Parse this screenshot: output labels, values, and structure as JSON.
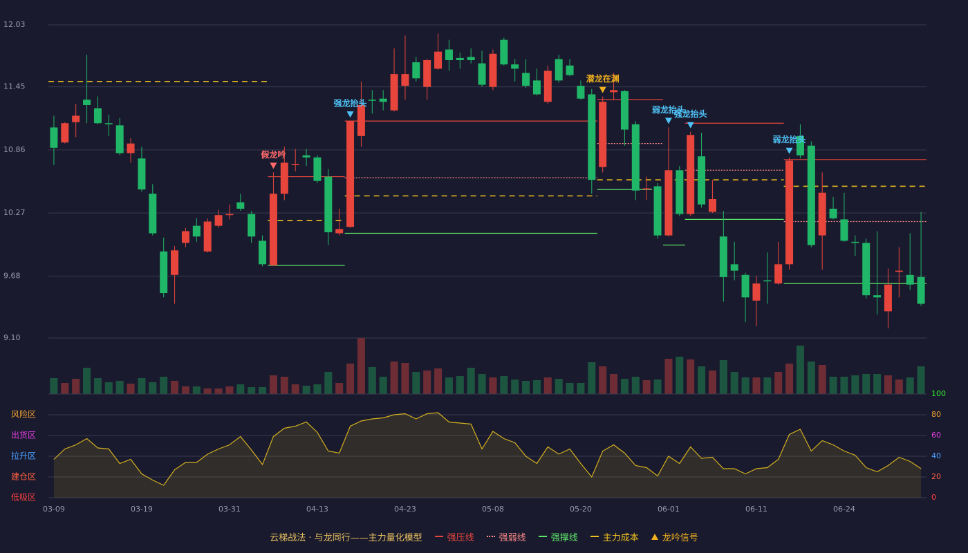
{
  "chart_data": [
    {
      "type": "candlestick",
      "legend_title": "云梯战法 · 与龙同行——主力量化模型",
      "up_color": "#e8463c",
      "down_color": "#20b868",
      "ylim": [
        9.1,
        12.03
      ],
      "yticks": [
        {
          "value": 9.1,
          "label": "9.10"
        },
        9.68,
        10.27,
        10.86,
        11.45,
        12.03
      ],
      "grid": true,
      "open": [
        11.07,
        10.93,
        11.12,
        11.33,
        11.25,
        11.11,
        11.09,
        10.83,
        10.78,
        10.45,
        9.91,
        9.69,
        9.99,
        10.15,
        9.91,
        10.15,
        10.25,
        10.37,
        10.26,
        10.01,
        9.78,
        10.45,
        10.72,
        10.81,
        10.79,
        10.61,
        10.08,
        10.14,
        10.99,
        11.33,
        11.34,
        11.23,
        11.46,
        11.68,
        11.45,
        11.62,
        11.8,
        11.72,
        11.73,
        11.67,
        11.45,
        11.89,
        11.66,
        11.58,
        11.51,
        11.31,
        11.71,
        11.65,
        11.46,
        11.38,
        10.7,
        11.4,
        11.41,
        11.1,
        10.49,
        10.52,
        10.06,
        10.67,
        10.26,
        10.8,
        10.28,
        10.05,
        9.79,
        9.69,
        9.45,
        9.64,
        9.61,
        9.79,
        10.99,
        10.9,
        10.06,
        10.31,
        10.21,
        10.0,
        9.99,
        9.5,
        9.35,
        9.72,
        9.69,
        9.67
      ],
      "high": [
        11.18,
        11.12,
        11.29,
        11.75,
        11.36,
        11.19,
        11.16,
        10.97,
        10.89,
        10.54,
        10.04,
        9.96,
        10.13,
        10.22,
        10.22,
        10.3,
        10.35,
        10.45,
        10.29,
        10.06,
        10.65,
        10.89,
        10.87,
        10.87,
        10.81,
        10.68,
        10.31,
        11.13,
        11.5,
        11.42,
        11.42,
        11.81,
        11.93,
        11.73,
        11.71,
        11.95,
        11.89,
        11.77,
        11.81,
        11.79,
        11.8,
        11.91,
        11.71,
        11.71,
        11.62,
        11.65,
        11.75,
        11.71,
        11.51,
        11.43,
        11.36,
        11.58,
        11.42,
        11.13,
        10.61,
        10.55,
        11.07,
        10.71,
        11.03,
        11.02,
        10.58,
        10.29,
        10.0,
        9.71,
        9.68,
        9.9,
        10.0,
        10.79,
        11.1,
        10.94,
        10.65,
        10.42,
        10.46,
        10.06,
        10.03,
        10.1,
        9.75,
        9.95,
        10.08,
        10.28
      ],
      "low": [
        10.72,
        10.92,
        10.98,
        11.11,
        11.1,
        10.99,
        10.81,
        10.74,
        10.47,
        10.06,
        9.48,
        9.42,
        9.95,
        10.0,
        9.9,
        10.13,
        10.21,
        10.29,
        9.99,
        9.77,
        9.78,
        10.39,
        10.66,
        10.71,
        10.55,
        9.97,
        10.06,
        10.13,
        10.89,
        11.2,
        11.23,
        11.22,
        11.33,
        11.5,
        11.33,
        11.61,
        11.6,
        11.62,
        11.67,
        11.45,
        11.42,
        11.65,
        11.5,
        11.44,
        11.37,
        11.29,
        11.49,
        11.55,
        11.33,
        10.45,
        10.65,
        11.33,
        10.9,
        10.39,
        10.39,
        10.03,
        10.05,
        10.24,
        10.24,
        10.32,
        10.27,
        9.44,
        9.64,
        9.25,
        9.21,
        9.42,
        9.6,
        9.74,
        10.78,
        9.95,
        9.74,
        10.21,
        10.0,
        9.87,
        9.47,
        9.32,
        9.19,
        9.48,
        9.55,
        9.4
      ],
      "close": [
        10.88,
        11.11,
        11.18,
        11.28,
        11.11,
        11.1,
        10.83,
        10.92,
        10.49,
        10.08,
        9.52,
        9.92,
        10.1,
        10.05,
        10.19,
        10.25,
        10.26,
        10.31,
        10.05,
        9.79,
        10.45,
        10.74,
        10.73,
        10.79,
        10.57,
        10.09,
        10.12,
        11.13,
        11.28,
        11.32,
        11.31,
        11.57,
        11.57,
        11.53,
        11.7,
        11.78,
        11.7,
        11.7,
        11.7,
        11.47,
        11.76,
        11.66,
        11.62,
        11.46,
        11.38,
        11.6,
        11.51,
        11.56,
        11.34,
        10.58,
        11.31,
        11.42,
        11.05,
        10.48,
        10.5,
        10.06,
        10.67,
        10.26,
        11.0,
        10.35,
        10.4,
        9.67,
        9.73,
        9.48,
        9.61,
        9.63,
        9.79,
        10.76,
        10.81,
        9.97,
        10.46,
        10.22,
        10.01,
        9.99,
        9.5,
        9.48,
        9.6,
        9.73,
        9.6,
        9.42
      ],
      "lines": [
        {
          "name": "强压线",
          "color": "#e8463c",
          "style": "solid",
          "segments": [
            {
              "start": 20,
              "end": 26,
              "value": 10.61
            },
            {
              "start": 27,
              "end": 49,
              "value": 11.13
            },
            {
              "start": 50,
              "end": 55,
              "value": 11.33
            },
            {
              "start": 58,
              "end": 66,
              "value": 11.11
            },
            {
              "start": 67,
              "end": 79,
              "value": 10.77
            }
          ]
        },
        {
          "name": "强弱线",
          "color": "#ff8a8a",
          "style": "dotted",
          "segments": [
            {
              "start": 27,
              "end": 49,
              "value": 10.6
            },
            {
              "start": 50,
              "end": 55,
              "value": 10.92
            },
            {
              "start": 58,
              "end": 66,
              "value": 10.67
            },
            {
              "start": 67,
              "end": 79,
              "value": 10.19
            }
          ]
        },
        {
          "name": "强撑线",
          "color": "#5ee86a",
          "style": "solid",
          "segments": [
            {
              "start": 20,
              "end": 26,
              "value": 9.78
            },
            {
              "start": 27,
              "end": 49,
              "value": 10.08
            },
            {
              "start": 50,
              "end": 54,
              "value": 10.49
            },
            {
              "start": 56,
              "end": 57,
              "value": 9.97
            },
            {
              "start": 58,
              "end": 66,
              "value": 10.21
            },
            {
              "start": 67,
              "end": 79,
              "value": 9.61
            }
          ]
        },
        {
          "name": "主力成本",
          "color": "#f0c020",
          "style": "dashed",
          "segments": [
            {
              "start": 0,
              "end": 19,
              "value": 11.5
            },
            {
              "start": 20,
              "end": 26,
              "value": 10.2
            },
            {
              "start": 27,
              "end": 49,
              "value": 10.43
            },
            {
              "start": 50,
              "end": 66,
              "value": 10.58
            },
            {
              "start": 67,
              "end": 79,
              "value": 10.52
            }
          ]
        }
      ],
      "signal_name": "龙吟信号",
      "signal_color": "#f0b020",
      "signals": [
        {
          "index": 20,
          "label": "假龙吟",
          "color": "#ff6b6b"
        },
        {
          "index": 27,
          "label": "强龙抬头",
          "color": "#4fc3f7"
        },
        {
          "index": 50,
          "label": "潜龙在渊",
          "color": "#f0b020"
        },
        {
          "index": 56,
          "label": "弱龙抬头",
          "color": "#4fc3f7"
        },
        {
          "index": 58,
          "label": "强龙抬头",
          "color": "#4fc3f7"
        },
        {
          "index": 67,
          "label": "弱龙抬头",
          "color": "#4fc3f7"
        }
      ]
    },
    {
      "type": "bar",
      "up_color": "#6e2d34",
      "down_color": "#1d5640",
      "values": [
        23,
        16,
        22,
        38,
        23,
        17,
        19,
        15,
        23,
        17,
        25,
        19,
        11,
        11,
        8,
        8,
        11,
        14,
        10,
        10,
        27,
        25,
        14,
        12,
        14,
        32,
        16,
        44,
        81,
        39,
        25,
        47,
        45,
        32,
        34,
        37,
        24,
        26,
        38,
        29,
        24,
        26,
        21,
        19,
        20,
        24,
        22,
        16,
        16,
        46,
        40,
        29,
        22,
        25,
        20,
        21,
        51,
        54,
        50,
        40,
        34,
        49,
        32,
        24,
        24,
        24,
        32,
        44,
        70,
        47,
        42,
        25,
        25,
        27,
        29,
        29,
        27,
        21,
        24,
        40
      ]
    },
    {
      "type": "line",
      "color": "#d4b020",
      "categories": [
        "03-09",
        null,
        null,
        null,
        null,
        null,
        null,
        null,
        "03-19",
        null,
        null,
        null,
        null,
        null,
        null,
        null,
        "03-31",
        null,
        null,
        null,
        null,
        null,
        null,
        null,
        "04-13",
        null,
        null,
        null,
        null,
        null,
        null,
        null,
        "04-23",
        null,
        null,
        null,
        null,
        null,
        null,
        null,
        "05-08",
        null,
        null,
        null,
        null,
        null,
        null,
        null,
        "05-20",
        null,
        null,
        null,
        null,
        null,
        null,
        null,
        "06-01",
        null,
        null,
        null,
        null,
        null,
        null,
        null,
        "06-11",
        null,
        null,
        null,
        null,
        null,
        null,
        null,
        "06-24",
        null,
        null,
        null,
        null,
        null,
        null,
        null
      ],
      "values": [
        37,
        47,
        51,
        57,
        48,
        47,
        33,
        37,
        23,
        17,
        12,
        27,
        34,
        34,
        42,
        47,
        51,
        59,
        46,
        32,
        59,
        67,
        69,
        73,
        63,
        45,
        43,
        69,
        74,
        76,
        77,
        80,
        81,
        76,
        81,
        82,
        73,
        72,
        71,
        47,
        64,
        57,
        53,
        40,
        33,
        49,
        42,
        47,
        33,
        20,
        45,
        51,
        43,
        31,
        29,
        21,
        40,
        33,
        49,
        38,
        39,
        28,
        28,
        23,
        28,
        29,
        37,
        61,
        66,
        45,
        55,
        51,
        45,
        41,
        29,
        25,
        31,
        39,
        35,
        28
      ],
      "ylim": [
        0,
        100
      ],
      "yticks": [
        0,
        20,
        40,
        60,
        80,
        100
      ],
      "ytick_colors": [
        "#ff4040",
        "#ff6040",
        "#4aa0ff",
        "#e040e0",
        "#f0a030",
        "#33ee33"
      ],
      "zones": [
        {
          "label": "风险区",
          "value": 80,
          "color": "#f0a030"
        },
        {
          "label": "出货区",
          "value": 60,
          "color": "#e040e0"
        },
        {
          "label": "拉升区",
          "value": 40,
          "color": "#4aa0ff"
        },
        {
          "label": "建仓区",
          "value": 20,
          "color": "#ff6040"
        },
        {
          "label": "低吸区",
          "value": 0,
          "color": "#ff4040"
        }
      ]
    }
  ]
}
